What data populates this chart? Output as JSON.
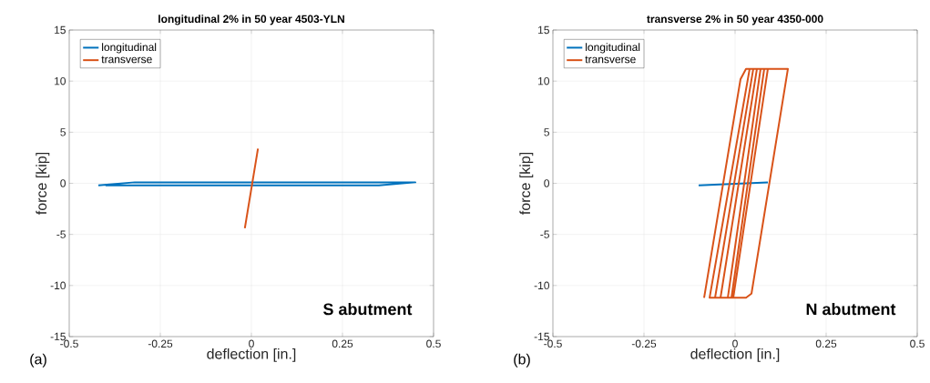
{
  "chart_data": [
    {
      "type": "line",
      "title": "longitudinal 2% in 50 year 4503-YLN",
      "xlabel": "deflection [in.]",
      "ylabel": "force [kip]",
      "xlim": [
        -0.5,
        0.5
      ],
      "ylim": [
        -15,
        15
      ],
      "xticks": [
        -0.5,
        -0.25,
        0,
        0.25,
        0.5
      ],
      "yticks": [
        -15,
        -10,
        -5,
        0,
        5,
        10,
        15
      ],
      "grid": true,
      "legend": "top left",
      "annotations": [
        "S abutment",
        "(a)"
      ],
      "series": [
        {
          "name": "longitudinal",
          "color": "#0072bd",
          "x": [
            -0.42,
            -0.32,
            0.45,
            0.35,
            -0.4
          ],
          "values": [
            -0.2,
            0.1,
            0.1,
            -0.2,
            -0.2
          ]
        },
        {
          "name": "transverse",
          "color": "#d95319",
          "x": [
            -0.018,
            0.018
          ],
          "values": [
            -4.4,
            3.4
          ]
        }
      ]
    },
    {
      "type": "line",
      "title": "transverse 2% in 50 year 4350-000",
      "xlabel": "deflection [in.]",
      "ylabel": "force [kip]",
      "xlim": [
        -0.5,
        0.5
      ],
      "ylim": [
        -15,
        15
      ],
      "xticks": [
        -0.5,
        -0.25,
        0,
        0.25,
        0.5
      ],
      "yticks": [
        -15,
        -10,
        -5,
        0,
        5,
        10,
        15
      ],
      "grid": true,
      "legend": "top left",
      "annotations": [
        "N abutment",
        "(b)"
      ],
      "series": [
        {
          "name": "longitudinal",
          "color": "#0072bd",
          "x": [
            -0.1,
            0.09
          ],
          "values": [
            -0.2,
            0.1
          ]
        },
        {
          "name": "transverse",
          "color": "#d95319",
          "x": [
            -0.085,
            0.015,
            0.03,
            0.145,
            0.045,
            0.03,
            -0.07,
            0.04,
            0.09,
            -0.005,
            -0.055,
            0.05,
            0.08,
            -0.01,
            -0.04,
            0.06,
            0.07,
            -0.02,
            -0.03
          ],
          "values": [
            -11.2,
            10.2,
            11.2,
            11.2,
            -10.8,
            -11.2,
            -11.2,
            11.2,
            11.2,
            -11.2,
            -11.2,
            11.2,
            11.2,
            -11.2,
            -11.2,
            11.2,
            11.2,
            -11.2,
            -11.2
          ]
        }
      ]
    }
  ]
}
